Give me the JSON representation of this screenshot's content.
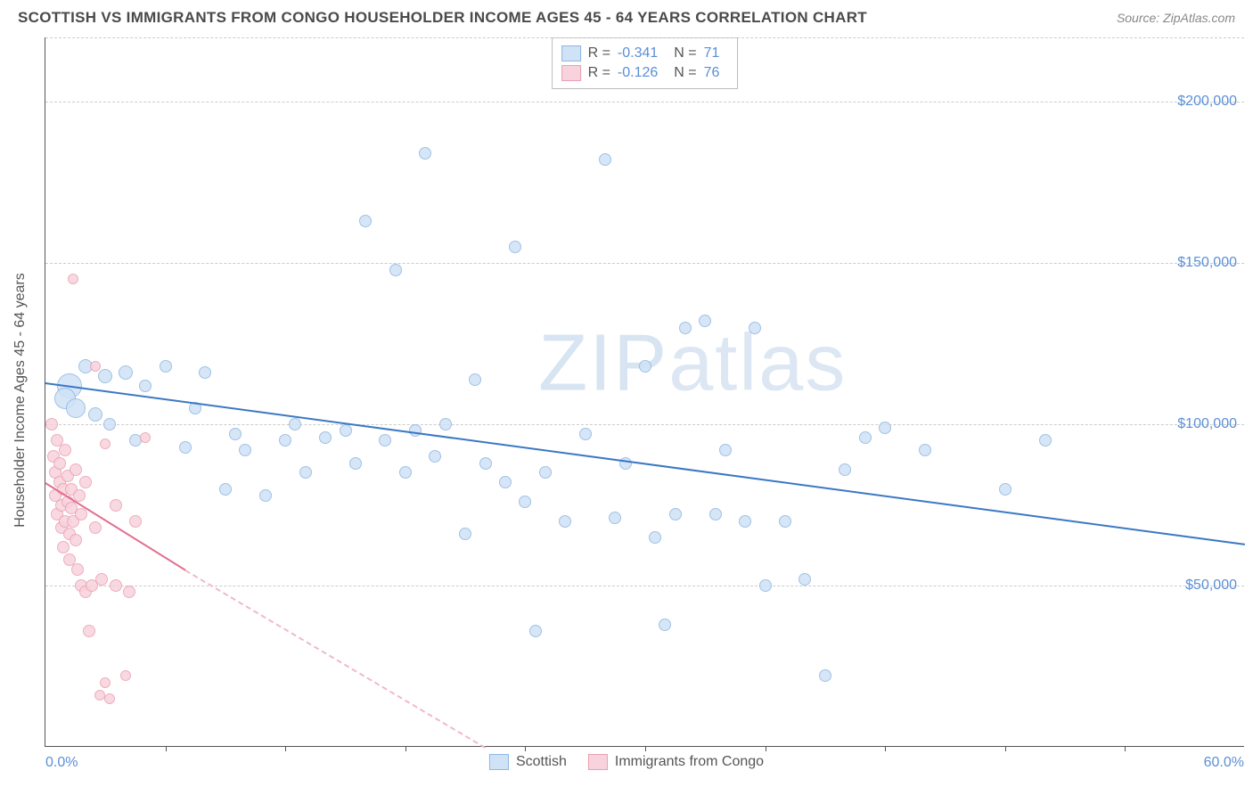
{
  "header": {
    "title": "SCOTTISH VS IMMIGRANTS FROM CONGO HOUSEHOLDER INCOME AGES 45 - 64 YEARS CORRELATION CHART",
    "source": "Source: ZipAtlas.com"
  },
  "watermark": {
    "bold": "ZIP",
    "light": "atlas"
  },
  "chart": {
    "type": "scatter",
    "yaxis_title": "Householder Income Ages 45 - 64 years",
    "xlim": [
      0,
      60
    ],
    "ylim": [
      0,
      220000
    ],
    "xlabel_min": "0.0%",
    "xlabel_max": "60.0%",
    "yticks": [
      {
        "v": 50000,
        "label": "$50,000"
      },
      {
        "v": 100000,
        "label": "$100,000"
      },
      {
        "v": 150000,
        "label": "$150,000"
      },
      {
        "v": 200000,
        "label": "$200,000"
      }
    ],
    "xticks": [
      6,
      12,
      18,
      24,
      30,
      36,
      42,
      48,
      54
    ],
    "background_color": "#ffffff",
    "grid_color": "#cccccc",
    "series": [
      {
        "name": "Scottish",
        "color_fill": "#cfe2f6",
        "color_stroke": "#8fb7e2",
        "trend_color": "#3b78c4",
        "R": "-0.341",
        "N": "71",
        "trend": {
          "x1": 0,
          "y1": 113000,
          "x2": 60,
          "y2": 63000,
          "dashed": false
        },
        "points": [
          {
            "x": 1.2,
            "y": 112000,
            "r": 14
          },
          {
            "x": 1.0,
            "y": 108000,
            "r": 12
          },
          {
            "x": 1.5,
            "y": 105000,
            "r": 11
          },
          {
            "x": 2.0,
            "y": 118000,
            "r": 8
          },
          {
            "x": 2.5,
            "y": 103000,
            "r": 8
          },
          {
            "x": 3.0,
            "y": 115000,
            "r": 8
          },
          {
            "x": 3.2,
            "y": 100000,
            "r": 7
          },
          {
            "x": 4.0,
            "y": 116000,
            "r": 8
          },
          {
            "x": 4.5,
            "y": 95000,
            "r": 7
          },
          {
            "x": 5.0,
            "y": 112000,
            "r": 7
          },
          {
            "x": 6.0,
            "y": 118000,
            "r": 7
          },
          {
            "x": 7.0,
            "y": 93000,
            "r": 7
          },
          {
            "x": 7.5,
            "y": 105000,
            "r": 7
          },
          {
            "x": 8.0,
            "y": 116000,
            "r": 7
          },
          {
            "x": 9.0,
            "y": 80000,
            "r": 7
          },
          {
            "x": 9.5,
            "y": 97000,
            "r": 7
          },
          {
            "x": 10.0,
            "y": 92000,
            "r": 7
          },
          {
            "x": 11.0,
            "y": 78000,
            "r": 7
          },
          {
            "x": 12.0,
            "y": 95000,
            "r": 7
          },
          {
            "x": 12.5,
            "y": 100000,
            "r": 7
          },
          {
            "x": 13.0,
            "y": 85000,
            "r": 7
          },
          {
            "x": 14.0,
            "y": 96000,
            "r": 7
          },
          {
            "x": 15.0,
            "y": 98000,
            "r": 7
          },
          {
            "x": 15.5,
            "y": 88000,
            "r": 7
          },
          {
            "x": 16.0,
            "y": 163000,
            "r": 7
          },
          {
            "x": 17.0,
            "y": 95000,
            "r": 7
          },
          {
            "x": 17.5,
            "y": 148000,
            "r": 7
          },
          {
            "x": 18.0,
            "y": 85000,
            "r": 7
          },
          {
            "x": 18.5,
            "y": 98000,
            "r": 7
          },
          {
            "x": 19.0,
            "y": 184000,
            "r": 7
          },
          {
            "x": 19.5,
            "y": 90000,
            "r": 7
          },
          {
            "x": 20.0,
            "y": 100000,
            "r": 7
          },
          {
            "x": 21.0,
            "y": 66000,
            "r": 7
          },
          {
            "x": 21.5,
            "y": 114000,
            "r": 7
          },
          {
            "x": 22.0,
            "y": 88000,
            "r": 7
          },
          {
            "x": 23.0,
            "y": 82000,
            "r": 7
          },
          {
            "x": 23.5,
            "y": 155000,
            "r": 7
          },
          {
            "x": 24.0,
            "y": 76000,
            "r": 7
          },
          {
            "x": 24.5,
            "y": 36000,
            "r": 7
          },
          {
            "x": 25.0,
            "y": 85000,
            "r": 7
          },
          {
            "x": 26.0,
            "y": 70000,
            "r": 7
          },
          {
            "x": 27.0,
            "y": 97000,
            "r": 7
          },
          {
            "x": 28.0,
            "y": 182000,
            "r": 7
          },
          {
            "x": 28.5,
            "y": 71000,
            "r": 7
          },
          {
            "x": 29.0,
            "y": 88000,
            "r": 7
          },
          {
            "x": 30.0,
            "y": 118000,
            "r": 7
          },
          {
            "x": 30.5,
            "y": 65000,
            "r": 7
          },
          {
            "x": 31.0,
            "y": 38000,
            "r": 7
          },
          {
            "x": 31.5,
            "y": 72000,
            "r": 7
          },
          {
            "x": 32.0,
            "y": 130000,
            "r": 7
          },
          {
            "x": 33.0,
            "y": 132000,
            "r": 7
          },
          {
            "x": 33.5,
            "y": 72000,
            "r": 7
          },
          {
            "x": 34.0,
            "y": 92000,
            "r": 7
          },
          {
            "x": 35.0,
            "y": 70000,
            "r": 7
          },
          {
            "x": 35.5,
            "y": 130000,
            "r": 7
          },
          {
            "x": 36.0,
            "y": 50000,
            "r": 7
          },
          {
            "x": 37.0,
            "y": 70000,
            "r": 7
          },
          {
            "x": 38.0,
            "y": 52000,
            "r": 7
          },
          {
            "x": 39.0,
            "y": 22000,
            "r": 7
          },
          {
            "x": 40.0,
            "y": 86000,
            "r": 7
          },
          {
            "x": 41.0,
            "y": 96000,
            "r": 7
          },
          {
            "x": 42.0,
            "y": 99000,
            "r": 7
          },
          {
            "x": 44.0,
            "y": 92000,
            "r": 7
          },
          {
            "x": 48.0,
            "y": 80000,
            "r": 7
          },
          {
            "x": 50.0,
            "y": 95000,
            "r": 7
          }
        ]
      },
      {
        "name": "Immigrants from Congo",
        "color_fill": "#f8d3dc",
        "color_stroke": "#eaa0b4",
        "trend_color": "#e36f8f",
        "R": "-0.126",
        "N": "76",
        "trend_solid": {
          "x1": 0,
          "y1": 82000,
          "x2": 7,
          "y2": 55000
        },
        "trend_dashed": {
          "x1": 7,
          "y1": 55000,
          "x2": 22,
          "y2": 0
        },
        "points": [
          {
            "x": 0.3,
            "y": 100000,
            "r": 7
          },
          {
            "x": 0.4,
            "y": 90000,
            "r": 7
          },
          {
            "x": 0.5,
            "y": 85000,
            "r": 7
          },
          {
            "x": 0.5,
            "y": 78000,
            "r": 7
          },
          {
            "x": 0.6,
            "y": 95000,
            "r": 7
          },
          {
            "x": 0.6,
            "y": 72000,
            "r": 7
          },
          {
            "x": 0.7,
            "y": 82000,
            "r": 7
          },
          {
            "x": 0.7,
            "y": 88000,
            "r": 7
          },
          {
            "x": 0.8,
            "y": 68000,
            "r": 7
          },
          {
            "x": 0.8,
            "y": 75000,
            "r": 7
          },
          {
            "x": 0.9,
            "y": 80000,
            "r": 7
          },
          {
            "x": 0.9,
            "y": 62000,
            "r": 7
          },
          {
            "x": 1.0,
            "y": 92000,
            "r": 7
          },
          {
            "x": 1.0,
            "y": 70000,
            "r": 7
          },
          {
            "x": 1.1,
            "y": 76000,
            "r": 7
          },
          {
            "x": 1.1,
            "y": 84000,
            "r": 7
          },
          {
            "x": 1.2,
            "y": 58000,
            "r": 7
          },
          {
            "x": 1.2,
            "y": 66000,
            "r": 7
          },
          {
            "x": 1.3,
            "y": 74000,
            "r": 7
          },
          {
            "x": 1.3,
            "y": 80000,
            "r": 7
          },
          {
            "x": 1.4,
            "y": 145000,
            "r": 6
          },
          {
            "x": 1.4,
            "y": 70000,
            "r": 7
          },
          {
            "x": 1.5,
            "y": 86000,
            "r": 7
          },
          {
            "x": 1.5,
            "y": 64000,
            "r": 7
          },
          {
            "x": 1.6,
            "y": 55000,
            "r": 7
          },
          {
            "x": 1.7,
            "y": 78000,
            "r": 7
          },
          {
            "x": 1.8,
            "y": 50000,
            "r": 7
          },
          {
            "x": 1.8,
            "y": 72000,
            "r": 7
          },
          {
            "x": 2.0,
            "y": 48000,
            "r": 7
          },
          {
            "x": 2.0,
            "y": 82000,
            "r": 7
          },
          {
            "x": 2.2,
            "y": 36000,
            "r": 7
          },
          {
            "x": 2.3,
            "y": 50000,
            "r": 7
          },
          {
            "x": 2.5,
            "y": 118000,
            "r": 6
          },
          {
            "x": 2.5,
            "y": 68000,
            "r": 7
          },
          {
            "x": 2.7,
            "y": 16000,
            "r": 6
          },
          {
            "x": 2.8,
            "y": 52000,
            "r": 7
          },
          {
            "x": 3.0,
            "y": 20000,
            "r": 6
          },
          {
            "x": 3.0,
            "y": 94000,
            "r": 6
          },
          {
            "x": 3.2,
            "y": 15000,
            "r": 6
          },
          {
            "x": 3.5,
            "y": 75000,
            "r": 7
          },
          {
            "x": 3.5,
            "y": 50000,
            "r": 7
          },
          {
            "x": 4.0,
            "y": 22000,
            "r": 6
          },
          {
            "x": 4.2,
            "y": 48000,
            "r": 7
          },
          {
            "x": 4.5,
            "y": 70000,
            "r": 7
          },
          {
            "x": 5.0,
            "y": 96000,
            "r": 6
          }
        ]
      }
    ],
    "bottom_legend": [
      {
        "label": "Scottish",
        "fill": "#cfe2f6",
        "stroke": "#8fb7e2"
      },
      {
        "label": "Immigrants from Congo",
        "fill": "#f8d3dc",
        "stroke": "#eaa0b4"
      }
    ]
  }
}
